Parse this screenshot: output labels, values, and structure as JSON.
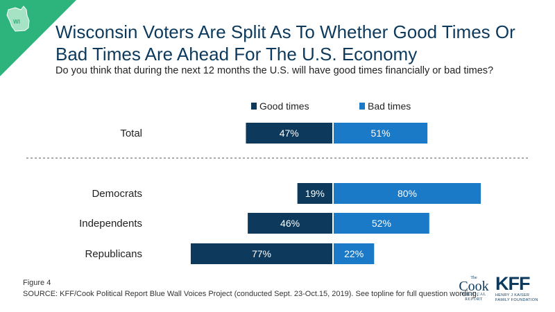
{
  "badge": {
    "label": "WI",
    "color": "#2db37c"
  },
  "title": "Wisconsin Voters Are Split As To Whether Good Times Or Bad Times Are Ahead For The U.S. Economy",
  "subtitle": "Do you think that during the next 12 months the U.S. will have good times financially or bad times?",
  "chart_data": {
    "type": "bar",
    "orientation": "horizontal",
    "layout": "diverging",
    "categories": [
      "Total",
      "Democrats",
      "Independents",
      "Republicans"
    ],
    "series": [
      {
        "name": "Good times",
        "values": [
          47,
          19,
          46,
          77
        ],
        "color": "#0d3a5c"
      },
      {
        "name": "Bad times",
        "values": [
          51,
          80,
          52,
          22
        ],
        "color": "#1a7ac8"
      }
    ],
    "value_suffix": "%",
    "legend_position": "top-center",
    "divider_after": "Total"
  },
  "footer": {
    "figure": "Figure 4",
    "source": "SOURCE: KFF/Cook Political Report Blue Wall Voices Project (conducted Sept. 23-Oct.15, 2019). See topline for full question wording."
  },
  "logos": {
    "cook": {
      "the": "The",
      "name": "Cook",
      "line1": "POLITICAL",
      "line2": "REPORT"
    },
    "kff": {
      "name": "KFF",
      "line1": "HENRY J KAISER",
      "line2": "FAMILY FOUNDATION"
    }
  }
}
